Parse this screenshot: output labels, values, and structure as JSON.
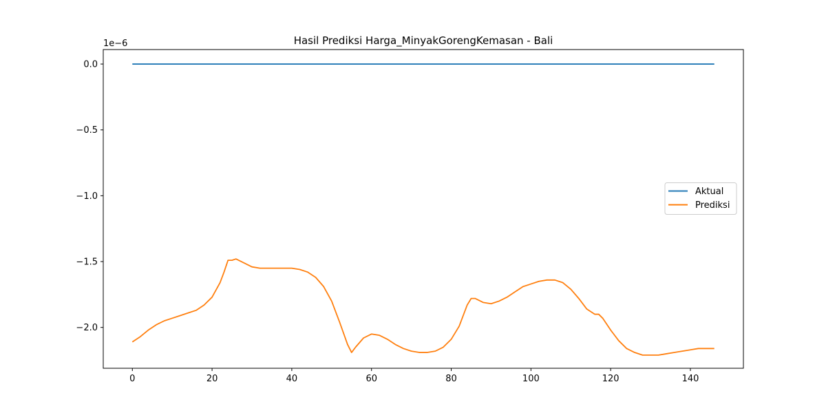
{
  "chart_data": {
    "type": "line",
    "title": "Hasil Prediksi Harga_MinyakGorengKemasan - Bali",
    "xlabel": "",
    "ylabel": "",
    "offset_label": "1e−6",
    "xlim": [
      -7.3,
      153.3
    ],
    "ylim": [
      -2.31,
      0.11
    ],
    "x_ticks": [
      0,
      20,
      40,
      60,
      80,
      100,
      120,
      140
    ],
    "x_tick_labels": [
      "0",
      "20",
      "40",
      "60",
      "80",
      "100",
      "120",
      "140"
    ],
    "y_ticks": [
      0.0,
      -0.5,
      -1.0,
      -1.5,
      -2.0
    ],
    "y_tick_labels": [
      "0.0",
      "−0.5",
      "−1.0",
      "−1.5",
      "−2.0"
    ],
    "grid": false,
    "legend_position": "center-right",
    "series": [
      {
        "name": "Aktual",
        "color": "#1f77b4",
        "x": [
          0,
          146
        ],
        "y": [
          0.0,
          0.0
        ]
      },
      {
        "name": "Prediksi",
        "color": "#ff7f0e",
        "x": [
          0,
          2,
          4,
          6,
          8,
          10,
          12,
          14,
          16,
          18,
          20,
          22,
          23,
          24,
          25,
          26,
          28,
          30,
          32,
          34,
          36,
          38,
          40,
          42,
          44,
          46,
          48,
          50,
          52,
          54,
          55,
          56,
          58,
          60,
          62,
          64,
          66,
          68,
          70,
          72,
          74,
          76,
          78,
          80,
          82,
          84,
          85,
          86,
          88,
          90,
          92,
          94,
          96,
          98,
          100,
          102,
          104,
          106,
          108,
          110,
          112,
          114,
          116,
          117,
          118,
          120,
          122,
          124,
          126,
          128,
          130,
          132,
          134,
          136,
          138,
          140,
          142,
          144,
          146
        ],
        "y": [
          -2.11,
          -2.07,
          -2.02,
          -1.98,
          -1.95,
          -1.93,
          -1.91,
          -1.89,
          -1.87,
          -1.83,
          -1.77,
          -1.66,
          -1.58,
          -1.49,
          -1.49,
          -1.48,
          -1.51,
          -1.54,
          -1.55,
          -1.55,
          -1.55,
          -1.55,
          -1.55,
          -1.56,
          -1.58,
          -1.62,
          -1.69,
          -1.8,
          -1.96,
          -2.13,
          -2.19,
          -2.15,
          -2.08,
          -2.05,
          -2.06,
          -2.09,
          -2.13,
          -2.16,
          -2.18,
          -2.19,
          -2.19,
          -2.18,
          -2.15,
          -2.09,
          -1.99,
          -1.83,
          -1.78,
          -1.78,
          -1.81,
          -1.82,
          -1.8,
          -1.77,
          -1.73,
          -1.69,
          -1.67,
          -1.65,
          -1.64,
          -1.64,
          -1.66,
          -1.71,
          -1.78,
          -1.86,
          -1.9,
          -1.9,
          -1.93,
          -2.02,
          -2.1,
          -2.16,
          -2.19,
          -2.21,
          -2.21,
          -2.21,
          -2.2,
          -2.19,
          -2.18,
          -2.17,
          -2.16,
          -2.16,
          -2.16
        ]
      }
    ]
  }
}
